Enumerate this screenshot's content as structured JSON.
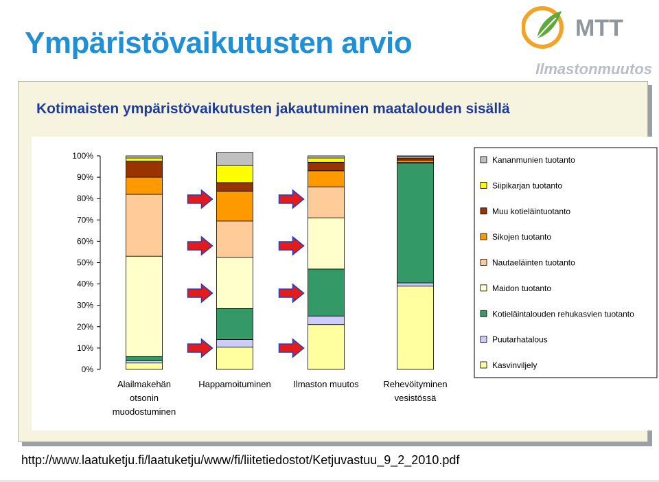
{
  "slide": {
    "title": "Ympäristövaikutusten arvio",
    "subtitle": "Kotimaisten ympäristövaikutusten jakautuminen maatalouden sisällä",
    "source_url": "http://www.laatuketju.fi/laatuketju/www/fi/liitetiedostot/Ketjuvastuu_9_2_2010.pdf"
  },
  "brand": {
    "logo_text": "MTT",
    "tagline": "Ilmastonmuutos",
    "colors": {
      "orange": "#f2a32a",
      "green": "#5fa83a",
      "gray": "#9aa0a6"
    }
  },
  "chart_data": {
    "type": "bar",
    "stacked": true,
    "percent": true,
    "ylim": [
      0,
      100
    ],
    "yticks": [
      "0%",
      "10%",
      "20%",
      "30%",
      "40%",
      "50%",
      "60%",
      "70%",
      "80%",
      "90%",
      "100%"
    ],
    "categories": [
      [
        "Alailmakehän",
        "otsonin",
        "muodostuminen"
      ],
      [
        "Happamoituminen"
      ],
      [
        "Ilmaston muutos"
      ],
      [
        "Rehevöityminen",
        "vesistössä"
      ]
    ],
    "highlighted_categories": [
      1,
      2
    ],
    "legend_position": "right",
    "series": [
      {
        "name": "Kasvinviljely",
        "color": "#ffffa0",
        "values": [
          3,
          10.5,
          21,
          39
        ]
      },
      {
        "name": "Puutarhatalous",
        "color": "#ccccff",
        "values": [
          1,
          3.5,
          4,
          1.5
        ]
      },
      {
        "name": "Kotieläintalouden rehukasvien tuotanto",
        "color": "#339966",
        "values": [
          2,
          14.5,
          22,
          56
        ]
      },
      {
        "name": "Maidon tuotanto",
        "color": "#ffffcc",
        "values": [
          47,
          24,
          24,
          0
        ]
      },
      {
        "name": "Nautaeläinten tuotanto",
        "color": "#ffcc99",
        "values": [
          29,
          17,
          14.5,
          0.5
        ]
      },
      {
        "name": "Sikojen tuotanto",
        "color": "#ff9900",
        "values": [
          8,
          14,
          7.5,
          1
        ]
      },
      {
        "name": "Muu kotieläintuotanto",
        "color": "#993300",
        "values": [
          7.5,
          4,
          4,
          1
        ]
      },
      {
        "name": "Siipikarjan tuotanto",
        "color": "#ffff00",
        "values": [
          1.5,
          8,
          2,
          0.5
        ]
      },
      {
        "name": "Kananmunien tuotanto",
        "color": "#c0c0c0",
        "values": [
          1,
          6,
          1,
          0.5
        ]
      }
    ]
  }
}
